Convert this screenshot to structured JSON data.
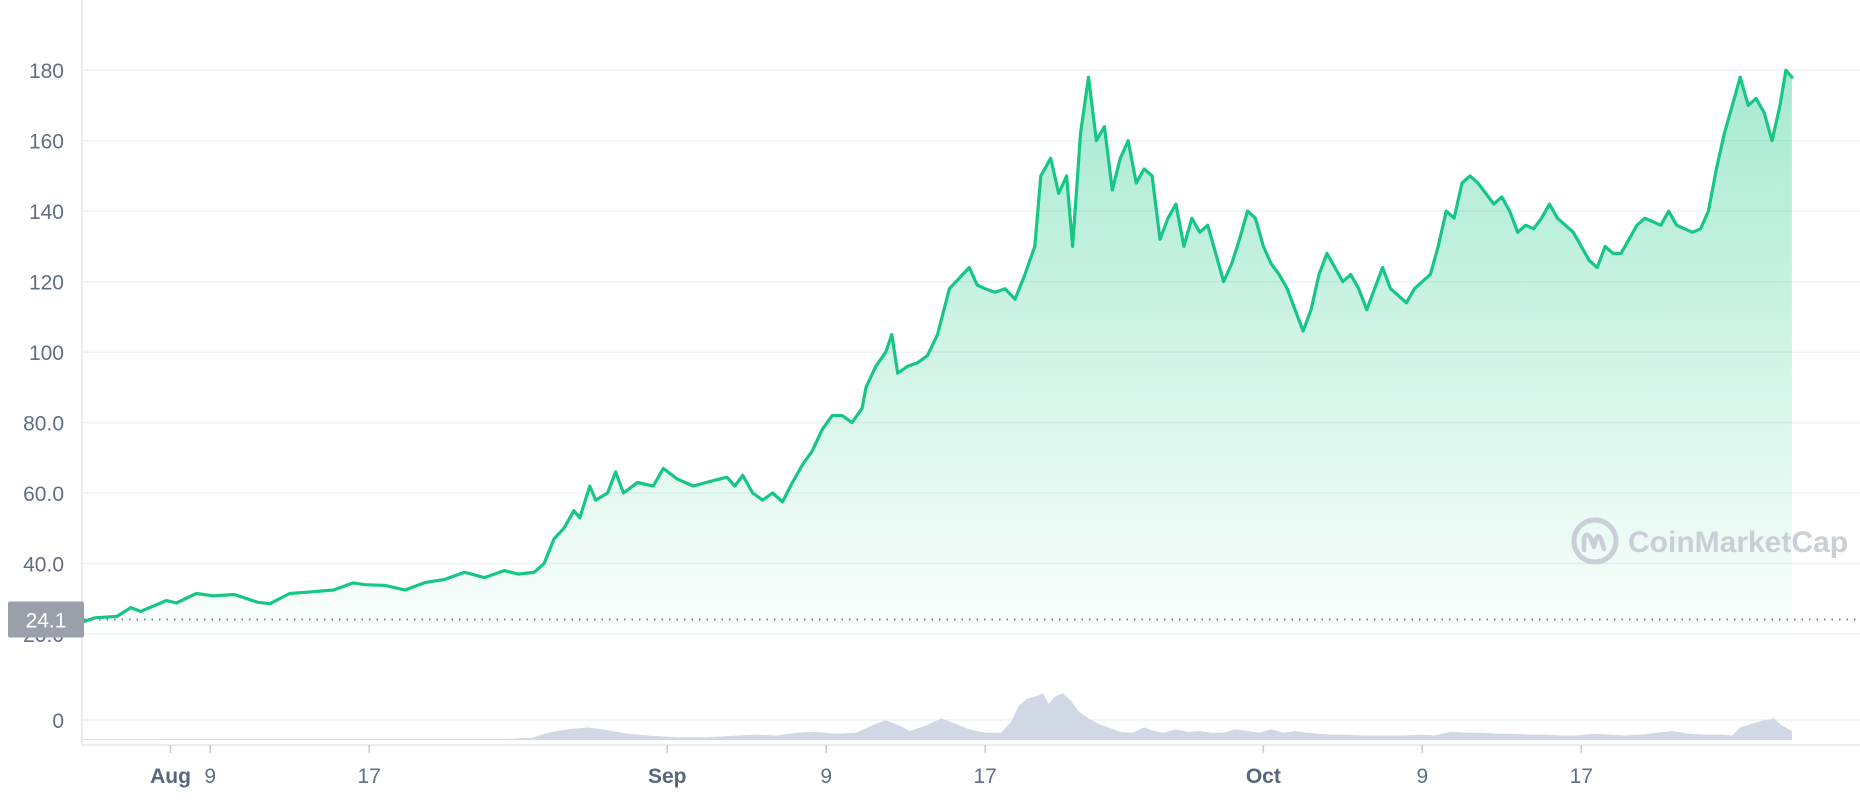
{
  "chart_data": {
    "type": "area",
    "y_ticks": [
      "20.0",
      "40.0",
      "60.0",
      "80.0",
      "100",
      "120",
      "140",
      "160",
      "180"
    ],
    "ylim": [
      20,
      188
    ],
    "x_ticks": [
      {
        "label": "Aug",
        "major": true,
        "day": 7
      },
      {
        "label": "9",
        "major": false,
        "day": 9
      },
      {
        "label": "17",
        "major": false,
        "day": 17
      },
      {
        "label": "Sep",
        "major": true,
        "day": 32
      },
      {
        "label": "9",
        "major": false,
        "day": 40
      },
      {
        "label": "17",
        "major": false,
        "day": 48
      },
      {
        "label": "Oct",
        "major": true,
        "day": 62
      },
      {
        "label": "9",
        "major": false,
        "day": 70
      },
      {
        "label": "17",
        "major": false,
        "day": 78
      }
    ],
    "start_price_label": "24.1",
    "start_price": 24.1,
    "grid": true,
    "series": [
      {
        "values": [
          [
            2.6,
            23.5
          ],
          [
            3.2,
            24.6
          ],
          [
            4.3,
            25.0
          ],
          [
            5.0,
            27.5
          ],
          [
            5.5,
            26.4
          ],
          [
            6.8,
            29.5
          ],
          [
            7.3,
            28.8
          ],
          [
            8.3,
            31.5
          ],
          [
            9.2,
            30.8
          ],
          [
            10.2,
            31.2
          ],
          [
            11.4,
            29.0
          ],
          [
            12.0,
            28.6
          ],
          [
            13.0,
            31.5
          ],
          [
            14.2,
            32.0
          ],
          [
            15.2,
            32.5
          ],
          [
            16.2,
            34.5
          ],
          [
            16.8,
            34.0
          ],
          [
            17.8,
            33.8
          ],
          [
            18.8,
            32.5
          ],
          [
            19.8,
            34.6
          ],
          [
            20.8,
            35.5
          ],
          [
            21.8,
            37.5
          ],
          [
            22.8,
            36.0
          ],
          [
            23.8,
            38.0
          ],
          [
            24.5,
            37.0
          ],
          [
            25.3,
            37.5
          ],
          [
            25.8,
            40.0
          ],
          [
            26.3,
            47.0
          ],
          [
            26.8,
            50.0
          ],
          [
            27.3,
            55.0
          ],
          [
            27.6,
            53.0
          ],
          [
            28.1,
            62.0
          ],
          [
            28.4,
            58.0
          ],
          [
            29.0,
            60.0
          ],
          [
            29.4,
            66.0
          ],
          [
            29.8,
            60.0
          ],
          [
            30.5,
            63.0
          ],
          [
            31.3,
            62.0
          ],
          [
            31.8,
            67.0
          ],
          [
            32.5,
            64.0
          ],
          [
            33.3,
            62.0
          ],
          [
            34.3,
            63.5
          ],
          [
            35.0,
            64.5
          ],
          [
            35.4,
            62.0
          ],
          [
            35.8,
            65.0
          ],
          [
            36.3,
            60.0
          ],
          [
            36.8,
            58.0
          ],
          [
            37.3,
            60.0
          ],
          [
            37.8,
            57.5
          ],
          [
            38.3,
            63.0
          ],
          [
            38.8,
            68.0
          ],
          [
            39.3,
            72.0
          ],
          [
            39.8,
            78.0
          ],
          [
            40.3,
            82.0
          ],
          [
            40.8,
            82.0
          ],
          [
            41.3,
            80.0
          ],
          [
            41.8,
            84.0
          ],
          [
            42.0,
            90.0
          ],
          [
            42.5,
            96.0
          ],
          [
            43.0,
            100.0
          ],
          [
            43.3,
            105.0
          ],
          [
            43.6,
            94.0
          ],
          [
            44.1,
            96.0
          ],
          [
            44.6,
            97.0
          ],
          [
            45.1,
            99.0
          ],
          [
            45.6,
            105.0
          ],
          [
            46.2,
            118.0
          ],
          [
            46.7,
            121.0
          ],
          [
            47.2,
            124.0
          ],
          [
            47.6,
            119.0
          ],
          [
            48.0,
            118.0
          ],
          [
            48.5,
            117.0
          ],
          [
            49.0,
            118.0
          ],
          [
            49.5,
            115.0
          ],
          [
            50.0,
            122.0
          ],
          [
            50.5,
            130.0
          ],
          [
            50.8,
            150.0
          ],
          [
            51.3,
            155.0
          ],
          [
            51.7,
            145.0
          ],
          [
            52.1,
            150.0
          ],
          [
            52.4,
            130.0
          ],
          [
            52.8,
            162.0
          ],
          [
            53.2,
            178.0
          ],
          [
            53.6,
            160.0
          ],
          [
            54.0,
            164.0
          ],
          [
            54.4,
            146.0
          ],
          [
            54.8,
            155.0
          ],
          [
            55.2,
            160.0
          ],
          [
            55.6,
            148.0
          ],
          [
            56.0,
            152.0
          ],
          [
            56.4,
            150.0
          ],
          [
            56.8,
            132.0
          ],
          [
            57.2,
            138.0
          ],
          [
            57.6,
            142.0
          ],
          [
            58.0,
            130.0
          ],
          [
            58.4,
            138.0
          ],
          [
            58.8,
            134.0
          ],
          [
            59.2,
            136.0
          ],
          [
            59.6,
            128.0
          ],
          [
            60.0,
            120.0
          ],
          [
            60.4,
            125.0
          ],
          [
            60.8,
            132.0
          ],
          [
            61.2,
            140.0
          ],
          [
            61.6,
            138.0
          ],
          [
            62.0,
            130.0
          ],
          [
            62.4,
            125.0
          ],
          [
            62.8,
            122.0
          ],
          [
            63.2,
            118.0
          ],
          [
            63.6,
            112.0
          ],
          [
            64.0,
            106.0
          ],
          [
            64.4,
            112.0
          ],
          [
            64.8,
            122.0
          ],
          [
            65.2,
            128.0
          ],
          [
            65.6,
            124.0
          ],
          [
            66.0,
            120.0
          ],
          [
            66.4,
            122.0
          ],
          [
            66.8,
            118.0
          ],
          [
            67.2,
            112.0
          ],
          [
            67.6,
            118.0
          ],
          [
            68.0,
            124.0
          ],
          [
            68.4,
            118.0
          ],
          [
            68.8,
            116.0
          ],
          [
            69.2,
            114.0
          ],
          [
            69.6,
            118.0
          ],
          [
            70.0,
            120.0
          ],
          [
            70.4,
            122.0
          ],
          [
            70.8,
            130.0
          ],
          [
            71.2,
            140.0
          ],
          [
            71.6,
            138.0
          ],
          [
            72.0,
            148.0
          ],
          [
            72.4,
            150.0
          ],
          [
            72.8,
            148.0
          ],
          [
            73.2,
            145.0
          ],
          [
            73.6,
            142.0
          ],
          [
            74.0,
            144.0
          ],
          [
            74.4,
            140.0
          ],
          [
            74.8,
            134.0
          ],
          [
            75.2,
            136.0
          ],
          [
            75.6,
            135.0
          ],
          [
            76.0,
            138.0
          ],
          [
            76.4,
            142.0
          ],
          [
            76.8,
            138.0
          ],
          [
            77.2,
            136.0
          ],
          [
            77.6,
            134.0
          ],
          [
            78.0,
            130.0
          ],
          [
            78.4,
            126.0
          ],
          [
            78.8,
            124.0
          ],
          [
            79.2,
            130.0
          ],
          [
            79.6,
            128.0
          ],
          [
            80.0,
            128.0
          ],
          [
            80.4,
            132.0
          ],
          [
            80.8,
            136.0
          ],
          [
            81.2,
            138.0
          ],
          [
            81.6,
            137.0
          ],
          [
            82.0,
            136.0
          ],
          [
            82.4,
            140.0
          ],
          [
            82.8,
            136.0
          ],
          [
            83.2,
            135.0
          ],
          [
            83.6,
            134.0
          ],
          [
            84.0,
            135.0
          ],
          [
            84.4,
            140.0
          ],
          [
            84.8,
            152.0
          ],
          [
            85.2,
            162.0
          ],
          [
            85.6,
            170.0
          ],
          [
            86.0,
            178.0
          ],
          [
            86.4,
            170.0
          ],
          [
            86.8,
            172.0
          ],
          [
            87.2,
            168.0
          ],
          [
            87.6,
            160.0
          ],
          [
            88.0,
            170.0
          ],
          [
            88.3,
            180.0
          ],
          [
            88.6,
            178.0
          ]
        ]
      }
    ],
    "volume": [
      [
        2.6,
        0.4
      ],
      [
        10.0,
        0.5
      ],
      [
        19.0,
        0.5
      ],
      [
        24.0,
        0.6
      ],
      [
        25.2,
        1.2
      ],
      [
        26.0,
        4.0
      ],
      [
        27.0,
        6.0
      ],
      [
        28.0,
        7.0
      ],
      [
        29.0,
        5.5
      ],
      [
        30.0,
        3.5
      ],
      [
        31.0,
        2.5
      ],
      [
        32.5,
        1.5
      ],
      [
        34.0,
        1.5
      ],
      [
        35.5,
        2.5
      ],
      [
        36.5,
        3.0
      ],
      [
        37.5,
        2.5
      ],
      [
        38.5,
        4.0
      ],
      [
        39.5,
        4.5
      ],
      [
        40.5,
        3.5
      ],
      [
        41.5,
        4.0
      ],
      [
        42.5,
        9.0
      ],
      [
        43.0,
        11.0
      ],
      [
        43.7,
        8.0
      ],
      [
        44.2,
        5.0
      ],
      [
        45.0,
        8.0
      ],
      [
        45.8,
        12.0
      ],
      [
        46.5,
        9.0
      ],
      [
        47.2,
        6.0
      ],
      [
        48.0,
        4.0
      ],
      [
        48.8,
        4.0
      ],
      [
        49.3,
        10.0
      ],
      [
        49.7,
        19.0
      ],
      [
        50.1,
        23.0
      ],
      [
        50.5,
        24.0
      ],
      [
        50.9,
        26.0
      ],
      [
        51.2,
        20.0
      ],
      [
        51.5,
        24.0
      ],
      [
        51.9,
        26.0
      ],
      [
        52.3,
        22.0
      ],
      [
        52.7,
        16.0
      ],
      [
        53.2,
        12.0
      ],
      [
        53.7,
        9.0
      ],
      [
        54.2,
        7.0
      ],
      [
        54.8,
        4.5
      ],
      [
        55.4,
        4.0
      ],
      [
        56.0,
        7.0
      ],
      [
        56.5,
        5.0
      ],
      [
        57.0,
        4.0
      ],
      [
        57.6,
        6.0
      ],
      [
        58.2,
        4.5
      ],
      [
        58.8,
        5.0
      ],
      [
        59.4,
        4.0
      ],
      [
        60.0,
        4.0
      ],
      [
        60.6,
        6.0
      ],
      [
        61.2,
        5.0
      ],
      [
        61.8,
        4.0
      ],
      [
        62.4,
        6.0
      ],
      [
        63.0,
        4.0
      ],
      [
        63.6,
        5.0
      ],
      [
        64.2,
        4.0
      ],
      [
        64.8,
        3.5
      ],
      [
        65.4,
        3.0
      ],
      [
        66.0,
        3.0
      ],
      [
        67.0,
        2.5
      ],
      [
        68.0,
        2.5
      ],
      [
        69.0,
        2.5
      ],
      [
        70.0,
        3.0
      ],
      [
        70.6,
        2.5
      ],
      [
        71.4,
        4.5
      ],
      [
        72.2,
        4.0
      ],
      [
        73.0,
        4.0
      ],
      [
        73.8,
        3.5
      ],
      [
        74.6,
        3.5
      ],
      [
        75.4,
        3.0
      ],
      [
        76.2,
        3.0
      ],
      [
        77.0,
        2.5
      ],
      [
        77.8,
        2.5
      ],
      [
        78.6,
        3.5
      ],
      [
        79.4,
        3.0
      ],
      [
        80.2,
        2.5
      ],
      [
        81.0,
        3.0
      ],
      [
        81.8,
        4.0
      ],
      [
        82.6,
        5.0
      ],
      [
        83.4,
        3.5
      ],
      [
        84.2,
        3.0
      ],
      [
        85.0,
        3.0
      ],
      [
        85.6,
        2.5
      ],
      [
        86.0,
        7.0
      ],
      [
        86.6,
        9.0
      ],
      [
        87.2,
        11.0
      ],
      [
        87.7,
        12.0
      ],
      [
        88.1,
        8.0
      ],
      [
        88.6,
        5.0
      ]
    ]
  },
  "watermark": {
    "text": "CoinMarketCap",
    "icon": "coinmarketcap-logo-icon"
  },
  "colors": {
    "line": "#16c784",
    "area_top": "#16c784",
    "volume": "#cfd6e4",
    "grid": "#eff2f5",
    "axis_text": "#616e85",
    "start_badge": "#9aa0aa"
  }
}
